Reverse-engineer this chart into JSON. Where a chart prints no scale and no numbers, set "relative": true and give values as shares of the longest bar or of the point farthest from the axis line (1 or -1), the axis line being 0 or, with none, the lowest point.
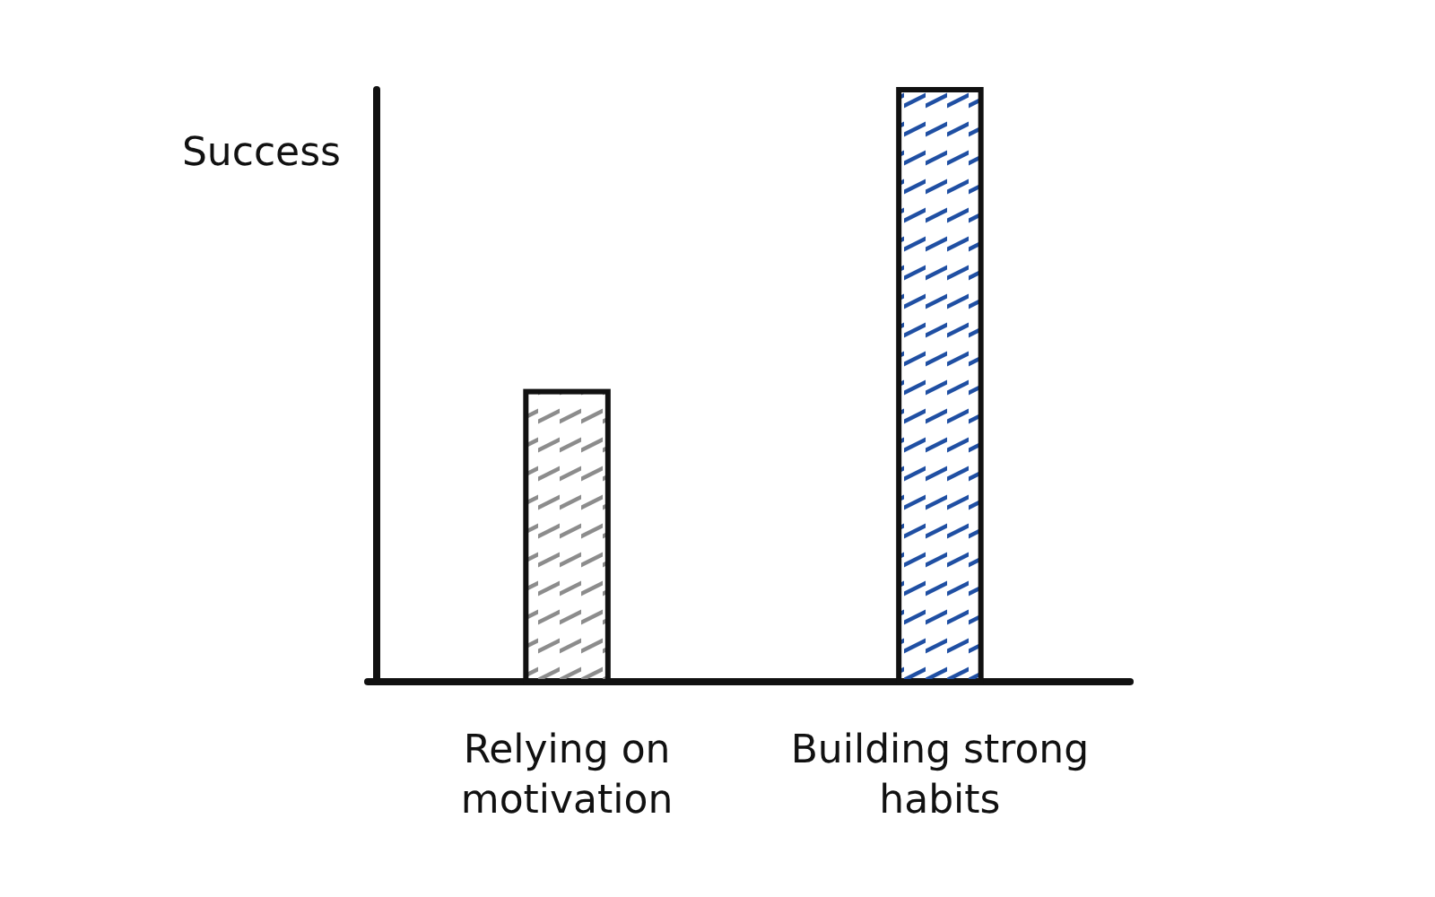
{
  "chart_data": {
    "type": "bar",
    "relative": true,
    "ylabel": "Success",
    "categories": [
      "Relying on motivation",
      "Building strong habits"
    ],
    "values": [
      0.49,
      1
    ],
    "colors": [
      "#8c8c8c",
      "#1f4fa3"
    ]
  }
}
